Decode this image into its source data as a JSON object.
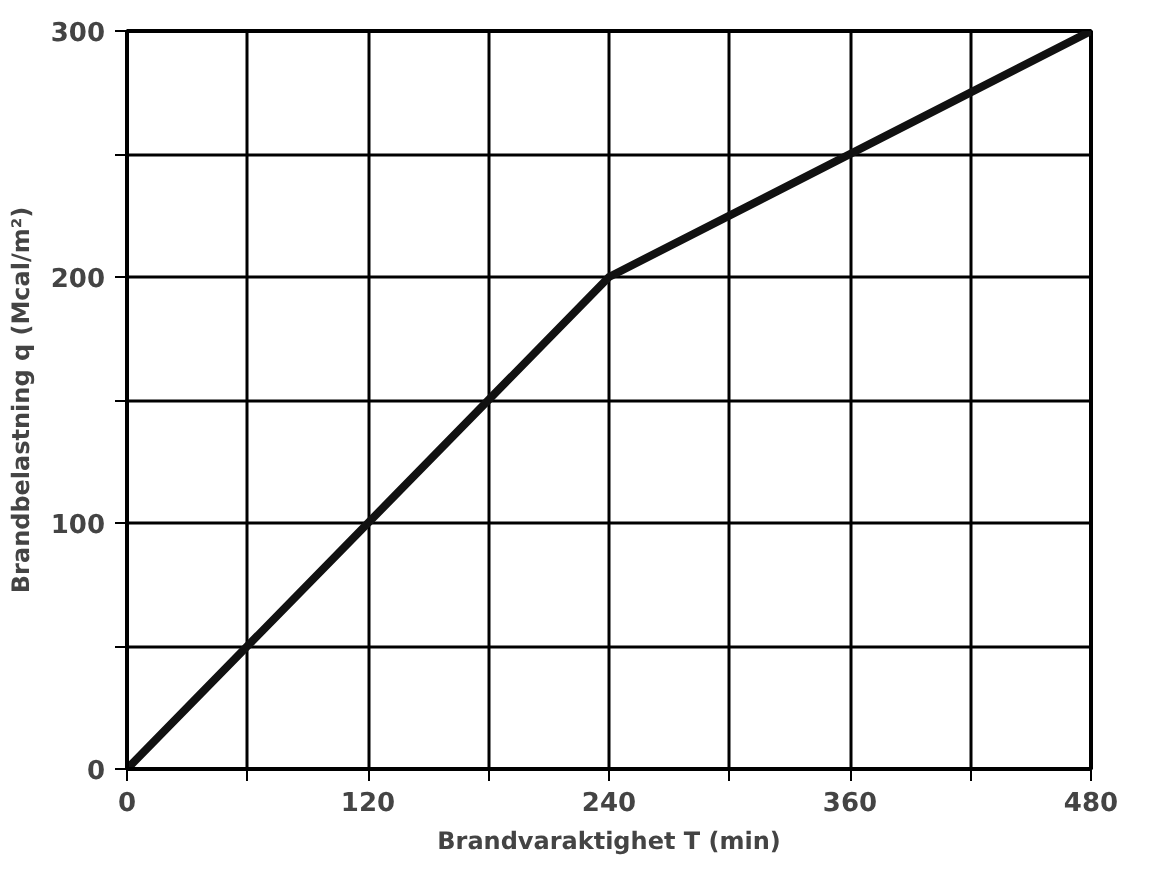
{
  "chart_data": {
    "type": "line",
    "xlabel": "Brandvaraktighet T (min)",
    "ylabel": "Brandbelastning q (Mcal/m²)",
    "x": [
      0,
      240,
      480
    ],
    "series": [
      {
        "color": "#111111",
        "values": [
          0,
          200,
          300
        ]
      }
    ],
    "xlim": [
      0,
      480
    ],
    "ylim": [
      0,
      300
    ],
    "xticks": [
      0,
      {
        "value": 60,
        "label": null
      },
      120,
      {
        "value": 180,
        "label": null
      },
      240,
      {
        "value": 300,
        "label": null
      },
      360,
      {
        "value": 420,
        "label": null
      },
      480
    ],
    "yticks": [
      0,
      {
        "value": 50,
        "label": null
      },
      100,
      {
        "value": 150,
        "label": null
      },
      200,
      {
        "value": 250,
        "label": null
      },
      300
    ],
    "grid": true,
    "line_style": "solid"
  }
}
